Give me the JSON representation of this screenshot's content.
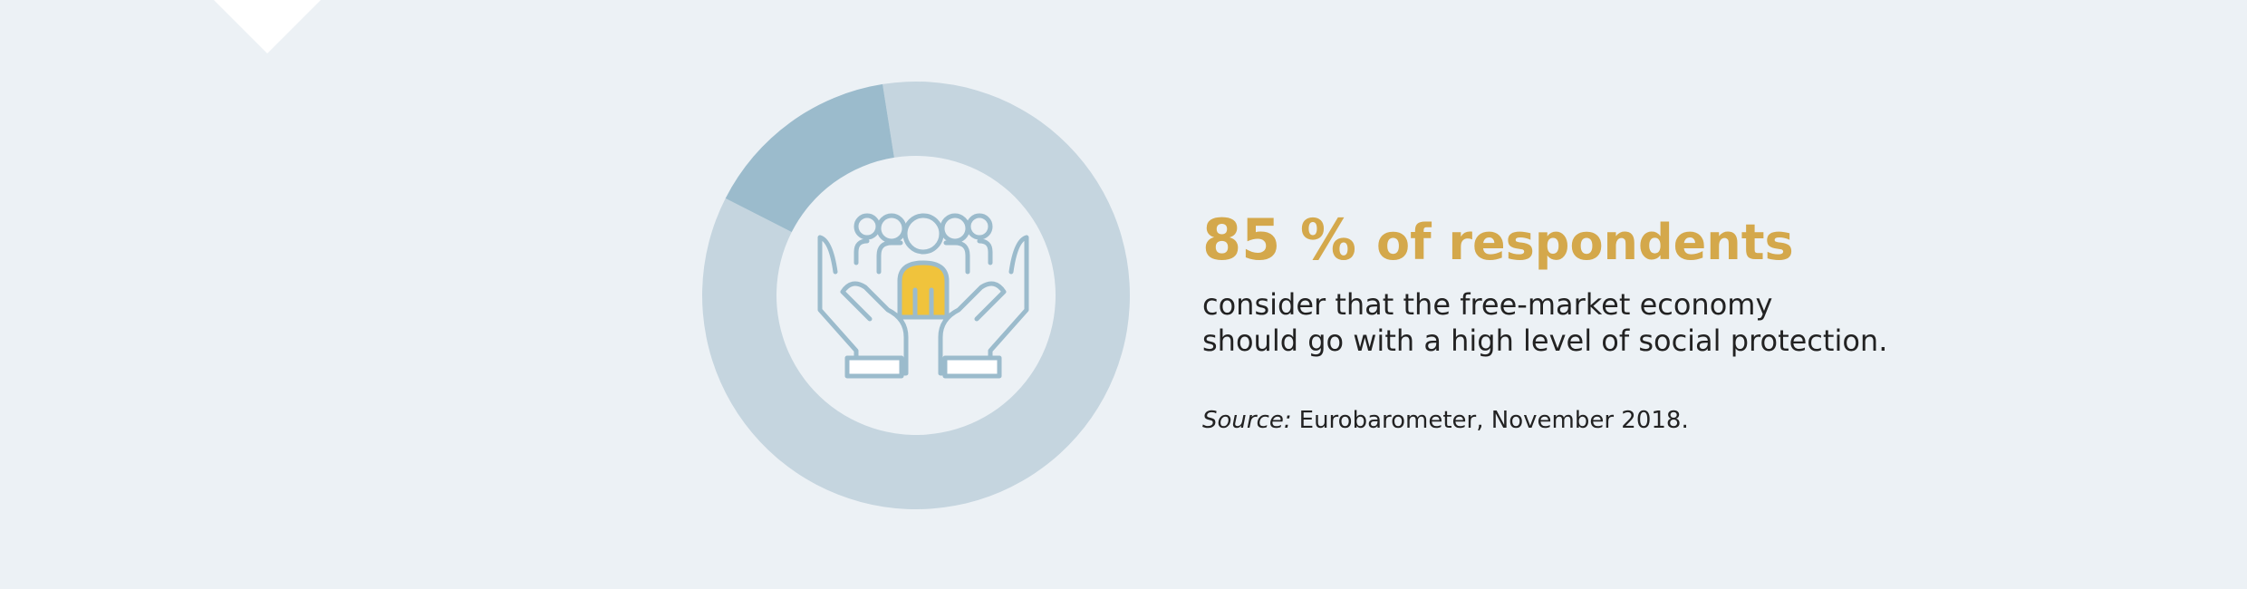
{
  "chart_data": {
    "type": "pie",
    "donut": true,
    "values": [
      85,
      15
    ],
    "value_labels": [
      "85 %",
      null
    ],
    "colors": [
      "#c5d5df",
      "#9bbbcc"
    ],
    "headline": "of respondents",
    "body": [
      "consider that the free-market economy",
      "should go with a high level of social protection."
    ],
    "source_label": "Source:",
    "source": "Eurobarometer, November 2018."
  }
}
